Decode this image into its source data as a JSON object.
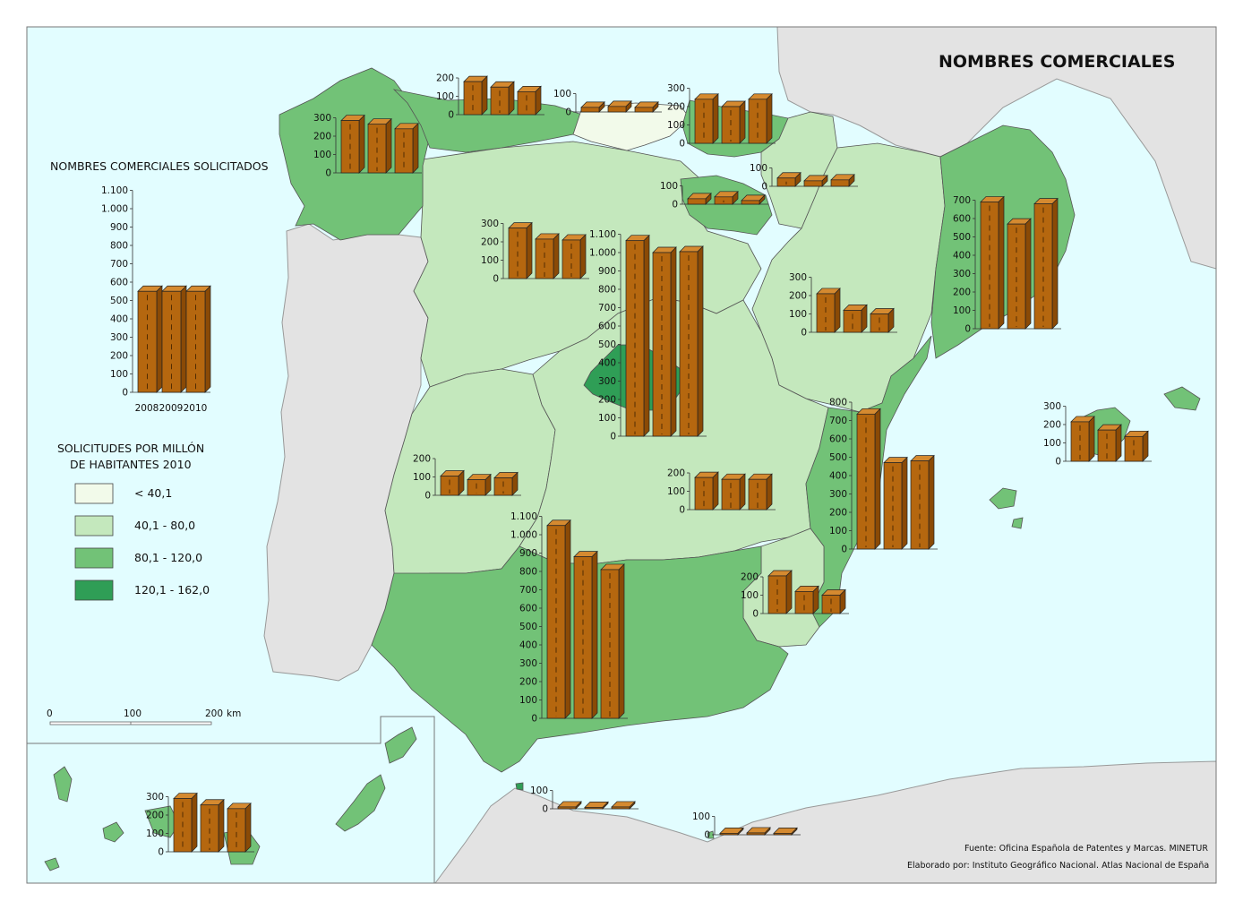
{
  "map": {
    "title": "NOMBRES COMERCIALES",
    "colors": {
      "sea": "#e2fdff",
      "foreign_land": "#e3e3e3",
      "border": "#555555",
      "bar_front": "#b5670f",
      "bar_side": "#8a4a06",
      "bar_top": "#d58a30"
    },
    "national_chart": {
      "title": "NOMBRES COMERCIALES SOLICITADOS",
      "years": [
        "2008",
        "2009",
        "2010"
      ],
      "values": [
        550,
        550,
        550
      ],
      "ticks": [
        "0",
        "100",
        "200",
        "300",
        "400",
        "500",
        "600",
        "700",
        "800",
        "900",
        "1.000",
        "1.100"
      ]
    },
    "legend": {
      "title_line1": "SOLICITUDES POR MILLÓN",
      "title_line2": "DE HABITANTES 2010",
      "classes": [
        {
          "label": "< 40,1",
          "color": "#f2faea"
        },
        {
          "label": "40,1 - 80,0",
          "color": "#c4e8bd"
        },
        {
          "label": "80,1 - 120,0",
          "color": "#72c277"
        },
        {
          "label": "120,1 - 162,0",
          "color": "#2f9e56"
        }
      ]
    },
    "scale_bar": {
      "labels": [
        "0",
        "100",
        "200"
      ],
      "unit": "km"
    },
    "source": "Fuente: Oficina Española de Patentes y Marcas. MINETUR",
    "credit": "Elaborado por: Instituto Geográfico Nacional. Atlas Nacional de España",
    "regions": [
      {
        "name": "Galicia",
        "values": [
          285,
          265,
          240
        ],
        "ticks": [
          "0",
          "100",
          "200",
          "300"
        ],
        "max": 300
      },
      {
        "name": "Asturias",
        "values": [
          180,
          150,
          125
        ],
        "ticks": [
          "0",
          "100",
          "200"
        ],
        "max": 200
      },
      {
        "name": "Cantabria",
        "values": [
          25,
          30,
          25
        ],
        "ticks": [
          "0",
          "100"
        ],
        "max": 100
      },
      {
        "name": "País Vasco",
        "values": [
          240,
          200,
          240
        ],
        "ticks": [
          "0",
          "100",
          "200",
          "300"
        ],
        "max": 300
      },
      {
        "name": "Navarra",
        "values": [
          45,
          30,
          35
        ],
        "ticks": [
          "0",
          "100"
        ],
        "max": 100
      },
      {
        "name": "La Rioja",
        "values": [
          30,
          40,
          20
        ],
        "ticks": [
          "0",
          "100"
        ],
        "max": 100
      },
      {
        "name": "Castilla y León",
        "values": [
          275,
          215,
          210
        ],
        "ticks": [
          "0",
          "100",
          "200",
          "300"
        ],
        "max": 300
      },
      {
        "name": "Madrid",
        "values": [
          1065,
          1000,
          1005
        ],
        "ticks": [
          "0",
          "100",
          "200",
          "300",
          "400",
          "500",
          "600",
          "700",
          "800",
          "900",
          "1.000",
          "1.100"
        ],
        "max": 1100
      },
      {
        "name": "Aragón",
        "values": [
          210,
          120,
          100
        ],
        "ticks": [
          "0",
          "100",
          "200",
          "300"
        ],
        "max": 300
      },
      {
        "name": "Cataluña",
        "values": [
          690,
          570,
          680
        ],
        "ticks": [
          "0",
          "100",
          "200",
          "300",
          "400",
          "500",
          "600",
          "700"
        ],
        "max": 700
      },
      {
        "name": "Illes Balears",
        "values": [
          215,
          170,
          135
        ],
        "ticks": [
          "0",
          "100",
          "200",
          "300"
        ],
        "max": 300
      },
      {
        "name": "Extremadura",
        "values": [
          105,
          85,
          95
        ],
        "ticks": [
          "0",
          "100",
          "200"
        ],
        "max": 200
      },
      {
        "name": "Castilla-La Mancha",
        "values": [
          175,
          165,
          165
        ],
        "ticks": [
          "0",
          "100",
          "200"
        ],
        "max": 200
      },
      {
        "name": "Comunitat Valenciana",
        "values": [
          735,
          470,
          480
        ],
        "ticks": [
          "0",
          "100",
          "200",
          "300",
          "400",
          "500",
          "600",
          "700",
          "800"
        ],
        "max": 800
      },
      {
        "name": "Región de Murcia",
        "values": [
          205,
          120,
          100
        ],
        "ticks": [
          "0",
          "100",
          "200"
        ],
        "max": 200
      },
      {
        "name": "Andalucía",
        "values": [
          1050,
          880,
          810
        ],
        "ticks": [
          "0",
          "100",
          "200",
          "300",
          "400",
          "500",
          "600",
          "700",
          "800",
          "900",
          "1.000",
          "1.100"
        ],
        "max": 1100
      },
      {
        "name": "Ceuta",
        "values": [
          10,
          8,
          10
        ],
        "ticks": [
          "0",
          "100"
        ],
        "max": 100
      },
      {
        "name": "Melilla",
        "values": [
          8,
          10,
          8
        ],
        "ticks": [
          "0",
          "100"
        ],
        "max": 100
      },
      {
        "name": "Canarias",
        "values": [
          290,
          255,
          235
        ],
        "ticks": [
          "0",
          "100",
          "200",
          "300"
        ],
        "max": 300
      }
    ]
  }
}
